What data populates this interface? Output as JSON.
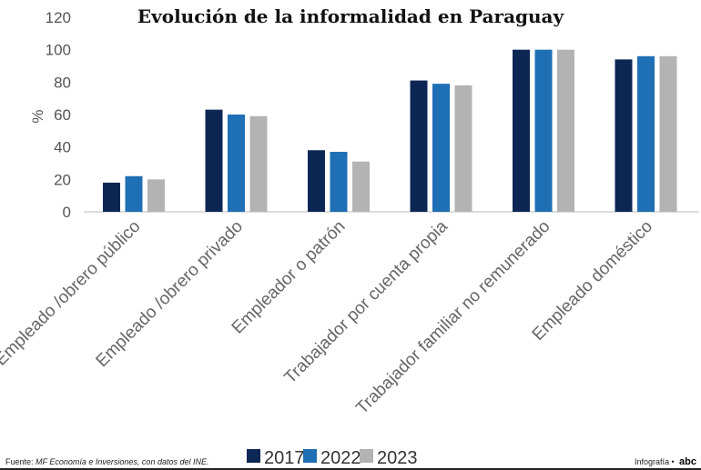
{
  "chart_data": {
    "type": "bar",
    "title": "Evolución de la informalidad en Paraguay",
    "ylabel": "%",
    "xlabel": "",
    "ylim": [
      0,
      120
    ],
    "yticks": [
      0,
      20,
      40,
      60,
      80,
      100,
      120
    ],
    "grid": false,
    "legend_position": "bottom",
    "categories": [
      "Empleado /obrero público",
      "Empleado /obrero privado",
      "Empleador o patrón",
      "Trabajador por cuenta propia",
      "Trabajador familiar no remunerado",
      "Empleado doméstico"
    ],
    "series": [
      {
        "name": "2017",
        "color": "#0d2754",
        "values": [
          18,
          63,
          38,
          81,
          100,
          94
        ]
      },
      {
        "name": "2022",
        "color": "#1f6fb5",
        "values": [
          22,
          60,
          37,
          79,
          100,
          96
        ]
      },
      {
        "name": "2023",
        "color": "#b3b3b3",
        "values": [
          20,
          59,
          31,
          78,
          100,
          96
        ]
      }
    ]
  },
  "footer": {
    "source_label": "Fuente:",
    "source_text": "MF Economía e Inversiones, con datos del INE.",
    "credit": "Infografía •",
    "logo": "abc"
  }
}
